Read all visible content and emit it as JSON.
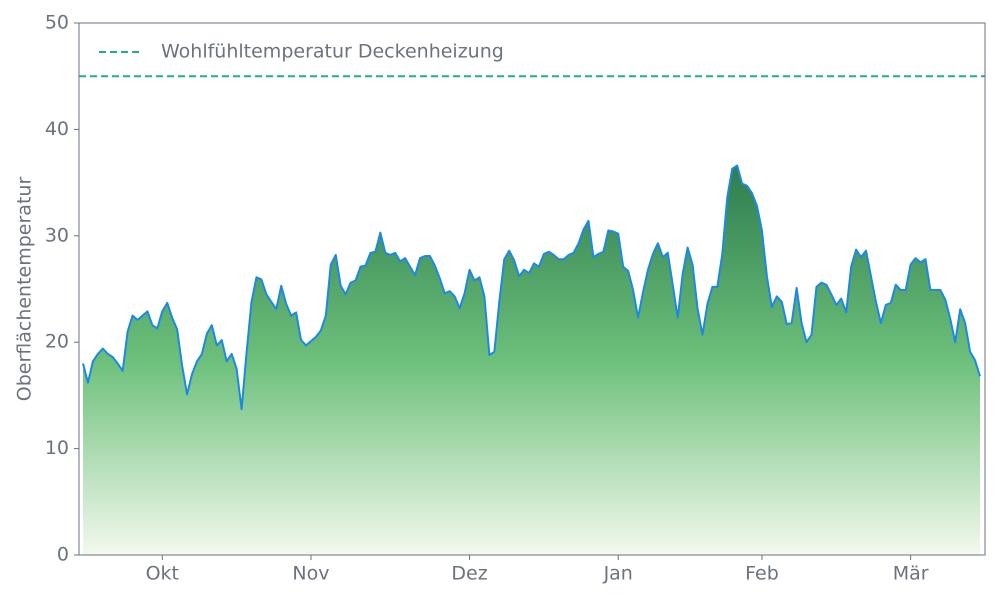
{
  "chart_data": {
    "type": "area",
    "ylabel": "Oberflächentemperatur",
    "categories": [
      null,
      null,
      null,
      null,
      null,
      null,
      null,
      null,
      null,
      null,
      null,
      null,
      null,
      null,
      null,
      null,
      "Okt",
      null,
      null,
      null,
      null,
      null,
      null,
      null,
      null,
      null,
      null,
      null,
      null,
      null,
      null,
      null,
      null,
      null,
      null,
      null,
      null,
      null,
      null,
      null,
      null,
      null,
      null,
      null,
      null,
      null,
      "Nov",
      null,
      null,
      null,
      null,
      null,
      null,
      null,
      null,
      null,
      null,
      null,
      null,
      null,
      null,
      null,
      null,
      null,
      null,
      null,
      null,
      null,
      null,
      null,
      null,
      null,
      null,
      null,
      null,
      null,
      null,
      null,
      "Dez",
      null,
      null,
      null,
      null,
      null,
      null,
      null,
      null,
      null,
      null,
      null,
      null,
      null,
      null,
      null,
      null,
      null,
      null,
      null,
      null,
      null,
      null,
      null,
      null,
      null,
      null,
      null,
      null,
      null,
      "Jan",
      null,
      null,
      null,
      null,
      null,
      null,
      null,
      null,
      null,
      null,
      null,
      null,
      null,
      null,
      null,
      null,
      null,
      null,
      null,
      null,
      null,
      null,
      null,
      null,
      null,
      null,
      null,
      null,
      "Feb",
      null,
      null,
      null,
      null,
      null,
      null,
      null,
      null,
      null,
      null,
      null,
      null,
      null,
      null,
      null,
      null,
      null,
      null,
      null,
      null,
      null,
      null,
      null,
      null,
      null,
      null,
      null,
      null,
      null,
      "Mär",
      null,
      null,
      null,
      null,
      null,
      null,
      null,
      null,
      null,
      null,
      null,
      null,
      null,
      null
    ],
    "values": [
      18,
      16.2,
      18.2,
      18.9,
      19.4,
      18.9,
      18.6,
      18,
      17.3,
      21,
      22.5,
      22.1,
      22.5,
      22.9,
      21.6,
      21.3,
      22.9,
      23.7,
      22.3,
      21.2,
      17.8,
      15.1,
      17,
      18.2,
      18.9,
      20.8,
      21.6,
      19.7,
      20.2,
      18.2,
      18.9,
      17.5,
      13.7,
      19,
      23.8,
      26.1,
      25.9,
      24.5,
      23.8,
      23.1,
      25.3,
      23.6,
      22.5,
      22.8,
      20.2,
      19.7,
      20.1,
      20.5,
      21.1,
      22.5,
      27.3,
      28.2,
      25.3,
      24.5,
      25.6,
      25.8,
      27.1,
      27.2,
      28.4,
      28.5,
      30.3,
      28.4,
      28.2,
      28.4,
      27.6,
      27.9,
      27.1,
      26.3,
      27.9,
      28.1,
      28.1,
      27.2,
      26,
      24.6,
      24.8,
      24.3,
      23.2,
      24.6,
      26.8,
      25.8,
      26.1,
      24.3,
      18.8,
      19.1,
      23.8,
      27.8,
      28.6,
      27.7,
      26.2,
      26.8,
      26.5,
      27.4,
      27.1,
      28.3,
      28.5,
      28.2,
      27.8,
      27.8,
      28.2,
      28.4,
      29.3,
      30.6,
      31.4,
      28,
      28.3,
      28.5,
      30.5,
      30.4,
      30.2,
      27.1,
      26.7,
      24.9,
      22.3,
      24.7,
      26.8,
      28.3,
      29.3,
      28,
      28.4,
      25.4,
      22.3,
      26.4,
      28.9,
      27.3,
      23.2,
      20.7,
      23.6,
      25.2,
      25.2,
      28.3,
      33.6,
      36.3,
      36.6,
      34.9,
      34.7,
      34,
      32.8,
      30.5,
      26.2,
      23.3,
      24.3,
      23.8,
      21.7,
      21.8,
      25.1,
      21.8,
      20,
      20.7,
      25.2,
      25.6,
      25.4,
      24.5,
      23.5,
      24.1,
      22.8,
      27.1,
      28.7,
      28,
      28.6,
      26.2,
      23.8,
      21.8,
      23.5,
      23.7,
      25.4,
      24.9,
      24.9,
      27.3,
      27.9,
      27.5,
      27.8,
      24.9,
      24.9,
      24.9,
      24,
      22.2,
      20,
      23.1,
      21.8,
      19.1,
      18.3,
      16.8
    ],
    "color": "#1e88e5",
    "fill_colors": [
      "#2e7d4f",
      "#6cc07a",
      "#f3f9ee"
    ],
    "ylim": [
      0,
      50
    ],
    "yticks": [
      0,
      10,
      20,
      30,
      40,
      50
    ],
    "grid": false,
    "reference_lines": [
      {
        "value": 45,
        "label": "Wohlfühltemperatur Deckenheizung",
        "color": "#1fb28a"
      }
    ],
    "legend": "upper left"
  }
}
